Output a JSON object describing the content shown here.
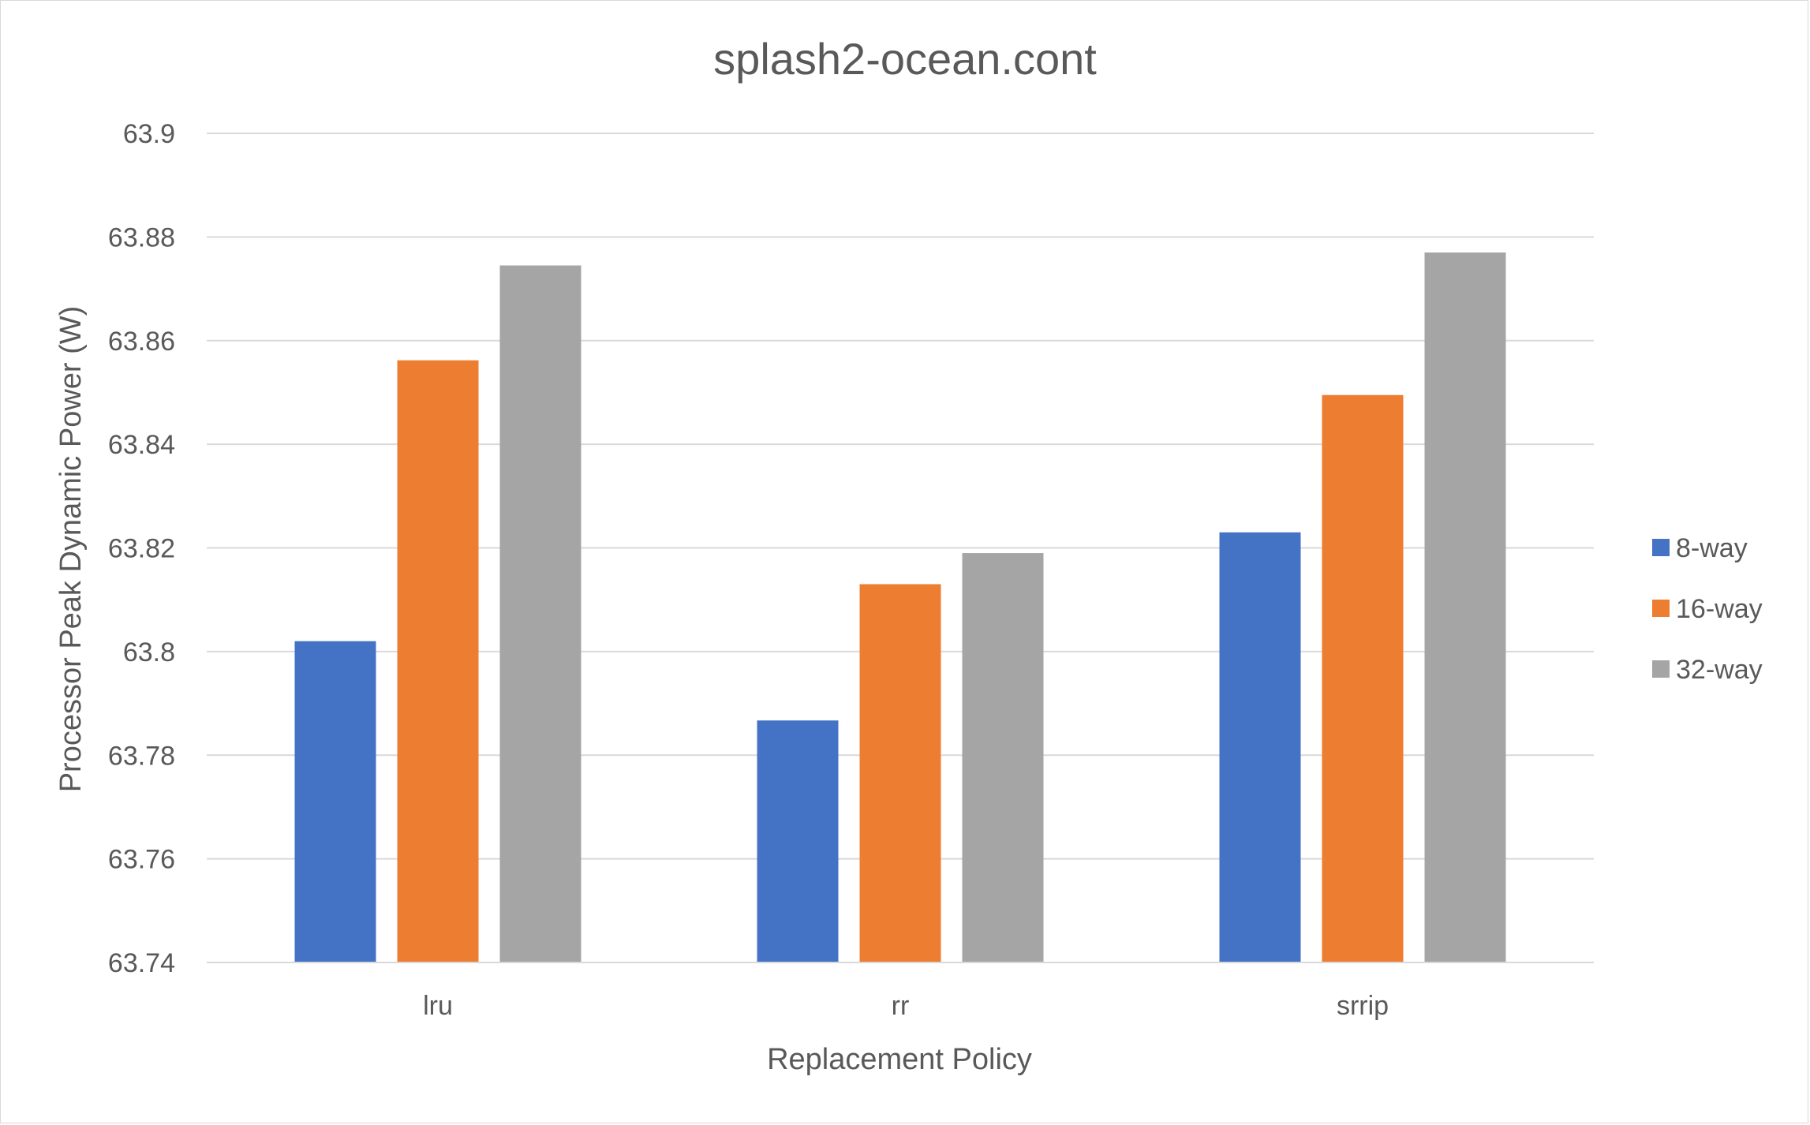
{
  "chart_data": {
    "type": "bar",
    "title": "splash2-ocean.cont",
    "xlabel": "Replacement Policy",
    "ylabel": "Processor Peak Dynamic Power (W)",
    "categories": [
      "lru",
      "rr",
      "srrip"
    ],
    "series": [
      {
        "name": "8-way",
        "color": "#4472C4",
        "values": [
          63.802,
          63.7867,
          63.823
        ]
      },
      {
        "name": "16-way",
        "color": "#ED7D31",
        "values": [
          63.8562,
          63.813,
          63.8495
        ]
      },
      {
        "name": "32-way",
        "color": "#A5A5A5",
        "values": [
          63.8745,
          63.819,
          63.877
        ]
      }
    ],
    "ylim": [
      63.74,
      63.9
    ],
    "yticks": [
      "63.74",
      "63.76",
      "63.78",
      "63.8",
      "63.82",
      "63.84",
      "63.86",
      "63.88",
      "63.9"
    ],
    "grid": true,
    "legend_position": "right"
  }
}
